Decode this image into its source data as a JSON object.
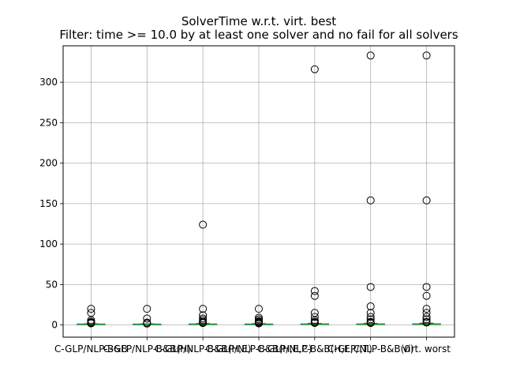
{
  "chart_data": {
    "type": "boxplot",
    "title": "SolverTime w.r.t. virt. best",
    "subtitle": "Filter: time >= 10.0 by at least one solver and no fail for all solvers",
    "xlabel": "",
    "ylabel": "",
    "ylim": [
      -15,
      345
    ],
    "yticks": [
      0,
      50,
      100,
      150,
      200,
      250,
      300
    ],
    "grid": true,
    "categories": [
      "C-GLP/NLP-B&B",
      "C-GLP/NLP-B&B(H)",
      "C-GLP/NLP-B&B(H,E)",
      "C-GLP/NLP-B&B(H,E,C)",
      "C-GLP/NLP-B&B(H,E,C,T)",
      "C-GLP/NLP-B&B(0)",
      "virt. worst"
    ],
    "series": [
      {
        "median": 1.0,
        "q1": 1.0,
        "q3": 1.3,
        "whisker_low": 1.0,
        "whisker_high": 1.6,
        "outliers": [
          20,
          15,
          6,
          4,
          3,
          2.5,
          2
        ]
      },
      {
        "median": 1.0,
        "q1": 1.0,
        "q3": 1.2,
        "whisker_low": 1.0,
        "whisker_high": 1.5,
        "outliers": [
          20,
          8,
          3,
          2,
          1.8
        ]
      },
      {
        "median": 1.0,
        "q1": 1.0,
        "q3": 1.4,
        "whisker_low": 1.0,
        "whisker_high": 1.8,
        "outliers": [
          124,
          20,
          12,
          8,
          6,
          4,
          3,
          2.5
        ]
      },
      {
        "median": 1.0,
        "q1": 1.0,
        "q3": 1.3,
        "whisker_low": 1.0,
        "whisker_high": 1.7,
        "outliers": [
          20,
          9,
          7,
          5,
          4,
          3,
          2.5,
          2
        ]
      },
      {
        "median": 1.0,
        "q1": 1.0,
        "q3": 1.5,
        "whisker_low": 1.0,
        "whisker_high": 2.0,
        "outliers": [
          316,
          42,
          36,
          15,
          10,
          6,
          4,
          3,
          2.5
        ]
      },
      {
        "median": 1.0,
        "q1": 1.0,
        "q3": 1.5,
        "whisker_low": 1.0,
        "whisker_high": 2.0,
        "outliers": [
          333,
          154,
          47,
          23,
          15,
          10,
          7,
          4,
          3,
          2.5
        ]
      },
      {
        "median": 1.0,
        "q1": 1.0,
        "q3": 1.6,
        "whisker_low": 1.0,
        "whisker_high": 2.2,
        "outliers": [
          333,
          154,
          47,
          36,
          20,
          15,
          10,
          7,
          4,
          3
        ]
      }
    ]
  }
}
